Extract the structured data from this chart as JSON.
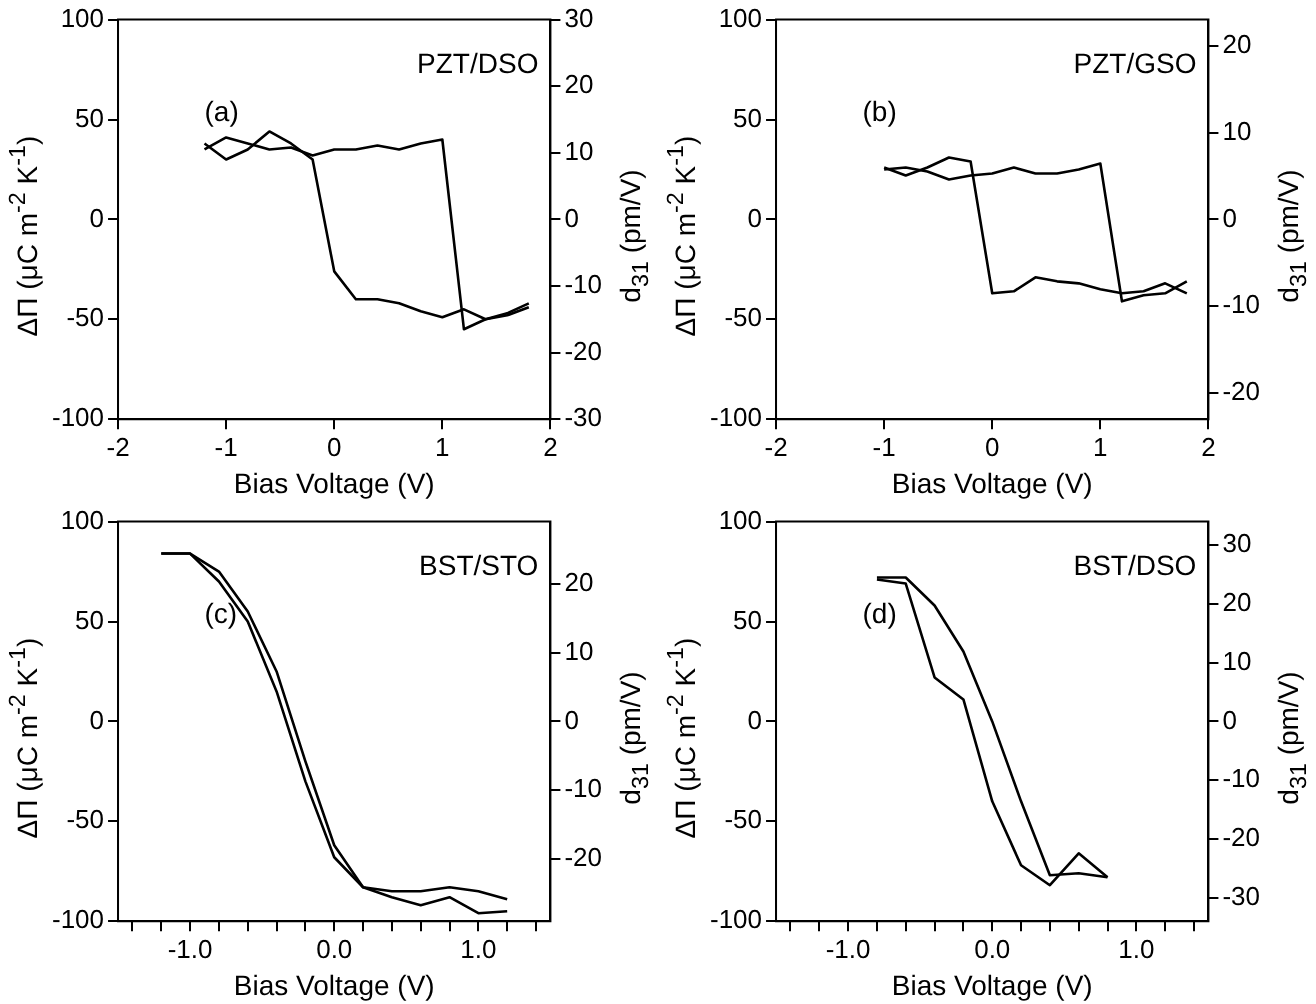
{
  "chart_data": [
    {
      "type": "line",
      "xlabel": "Bias Voltage (V)",
      "ylabel": "ΔΠ (μC m$^{-2}$ K$^{-1}$)",
      "y2label": "d$_{31}$ (pm/V)",
      "annotations": [
        "(a)",
        "PZT/DSO"
      ],
      "xlim": [
        -2,
        2
      ],
      "xticks": [
        -2,
        -1,
        0,
        1,
        2
      ],
      "ylim": [
        -100,
        100
      ],
      "yticks": [
        -100,
        -50,
        0,
        50,
        100
      ],
      "y2lim": [
        -30,
        30
      ],
      "y2ticks": [
        -30,
        -20,
        -10,
        0,
        10,
        20,
        30
      ],
      "series": [
        {
          "color": "#000000",
          "x": [
            -1.2,
            -1.0,
            -0.8,
            -0.6,
            -0.4,
            -0.2,
            0,
            0.2,
            0.4,
            0.6,
            0.8,
            1.0,
            1.2,
            1.4,
            1.6,
            1.8
          ],
          "values": [
            35,
            41,
            38,
            35,
            36,
            32,
            35,
            35,
            37,
            35,
            38,
            40,
            -55,
            -50,
            -48,
            -44
          ]
        },
        {
          "color": "#000000",
          "x": [
            1.8,
            1.6,
            1.4,
            1.2,
            1.0,
            0.8,
            0.6,
            0.4,
            0.2,
            0,
            -0.2,
            -0.4,
            -0.6,
            -0.8,
            -1.0,
            -1.2
          ],
          "values": [
            -42,
            -47,
            -50,
            -45,
            -49,
            -46,
            -42,
            -40,
            -40,
            -26,
            30,
            38,
            44,
            35,
            30,
            38
          ]
        }
      ]
    },
    {
      "type": "line",
      "xlabel": "Bias Voltage (V)",
      "ylabel": "ΔΠ (μC m$^{-2}$ K$^{-1}$)",
      "y2label": "d$_{31}$ (pm/V)",
      "annotations": [
        "(b)",
        "PZT/GSO"
      ],
      "xlim": [
        -2,
        2
      ],
      "xticks": [
        -2,
        -1,
        0,
        1,
        2
      ],
      "ylim": [
        -100,
        100
      ],
      "yticks": [
        -100,
        -50,
        0,
        50,
        100
      ],
      "y2lim": [
        -23,
        23
      ],
      "y2ticks": [
        -20,
        -10,
        0,
        10,
        20
      ],
      "series": [
        {
          "color": "#000000",
          "x": [
            -1.0,
            -0.8,
            -0.6,
            -0.4,
            -0.2,
            0,
            0.2,
            0.4,
            0.6,
            0.8,
            1.0,
            1.2,
            1.4,
            1.6,
            1.8
          ],
          "values": [
            26,
            22,
            26,
            31,
            29,
            -37,
            -36,
            -29,
            -31,
            -32,
            -35,
            -37,
            -36,
            -32,
            -37
          ]
        },
        {
          "color": "#000000",
          "x": [
            1.8,
            1.6,
            1.4,
            1.2,
            1.0,
            0.8,
            0.6,
            0.4,
            0.2,
            0,
            -0.2,
            -0.4,
            -0.6,
            -0.8,
            -1.0
          ],
          "values": [
            -31,
            -37,
            -38,
            -41,
            28,
            25,
            23,
            23,
            26,
            23,
            22,
            20,
            24,
            26,
            25
          ]
        }
      ]
    },
    {
      "type": "line",
      "xlabel": "Bias Voltage (V)",
      "ylabel": "ΔΠ (μC m$^{-2}$ K$^{-1}$)",
      "y2label": "d$_{31}$ (pm/V)",
      "annotations": [
        "(c)",
        "BST/STO"
      ],
      "xlim": [
        -1.5,
        1.5
      ],
      "xticks": [
        {
          "value": -1.4,
          "label": null
        },
        {
          "value": -1.2,
          "label": null
        },
        {
          "value": -1,
          "label": "-1.0"
        },
        {
          "value": -0.8,
          "label": null
        },
        {
          "value": -0.6,
          "label": null
        },
        {
          "value": -0.4,
          "label": null
        },
        {
          "value": -0.2,
          "label": null
        },
        {
          "value": 0,
          "label": "0.0"
        },
        {
          "value": 0.2,
          "label": null
        },
        {
          "value": 0.4,
          "label": null
        },
        {
          "value": 0.6,
          "label": null
        },
        {
          "value": 0.8,
          "label": null
        },
        {
          "value": 1,
          "label": "1.0"
        },
        {
          "value": 1.2,
          "label": null
        },
        {
          "value": 1.4,
          "label": null
        }
      ],
      "ylim": [
        -100,
        100
      ],
      "yticks": [
        -100,
        -50,
        0,
        50,
        100
      ],
      "y2lim": [
        -29,
        29
      ],
      "y2ticks": [
        -20,
        -10,
        0,
        10,
        20
      ],
      "series": [
        {
          "color": "#000000",
          "x": [
            -1.2,
            -1.0,
            -0.8,
            -0.6,
            -0.4,
            -0.2,
            0,
            0.2,
            0.4,
            0.6,
            0.8,
            1.0,
            1.2
          ],
          "values": [
            84,
            84,
            75,
            55,
            25,
            -20,
            -62,
            -83,
            -85,
            -85,
            -83,
            -85,
            -89
          ]
        },
        {
          "color": "#000000",
          "x": [
            1.2,
            1.0,
            0.8,
            0.6,
            0.4,
            0.2,
            0,
            -0.2,
            -0.4,
            -0.6,
            -0.8,
            -1.0,
            -1.2
          ],
          "values": [
            -95,
            -96,
            -88,
            -92,
            -88,
            -83,
            -68,
            -30,
            15,
            50,
            70,
            84,
            84
          ]
        }
      ]
    },
    {
      "type": "line",
      "xlabel": "Bias Voltage (V)",
      "ylabel": "ΔΠ (μC m$^{-2}$ K$^{-1}$)",
      "y2label": "d$_{31}$ (pm/V)",
      "annotations": [
        "(d)",
        "BST/DSO"
      ],
      "xlim": [
        -1.5,
        1.5
      ],
      "xticks": [
        {
          "value": -1.4,
          "label": null
        },
        {
          "value": -1.2,
          "label": null
        },
        {
          "value": -1,
          "label": "-1.0"
        },
        {
          "value": -0.8,
          "label": null
        },
        {
          "value": -0.6,
          "label": null
        },
        {
          "value": -0.4,
          "label": null
        },
        {
          "value": -0.2,
          "label": null
        },
        {
          "value": 0,
          "label": "0.0"
        },
        {
          "value": 0.2,
          "label": null
        },
        {
          "value": 0.4,
          "label": null
        },
        {
          "value": 0.6,
          "label": null
        },
        {
          "value": 0.8,
          "label": null
        },
        {
          "value": 1,
          "label": "1.0"
        },
        {
          "value": 1.2,
          "label": null
        },
        {
          "value": 1.4,
          "label": null
        }
      ],
      "ylim": [
        -100,
        100
      ],
      "yticks": [
        -100,
        -50,
        0,
        50,
        100
      ],
      "y2lim": [
        -34,
        34
      ],
      "y2ticks": [
        -30,
        -20,
        -10,
        0,
        10,
        20,
        30
      ],
      "series": [
        {
          "color": "#000000",
          "x": [
            -0.8,
            -0.6,
            -0.4,
            -0.2,
            0,
            0.2,
            0.4,
            0.6,
            0.8
          ],
          "values": [
            72,
            72,
            58,
            35,
            0,
            -40,
            -77,
            -76,
            -78
          ]
        },
        {
          "color": "#000000",
          "x": [
            0.8,
            0.6,
            0.4,
            0.2,
            0,
            -0.2,
            -0.4,
            -0.6,
            -0.8
          ],
          "values": [
            -78,
            -66,
            -82,
            -72,
            -40,
            11,
            22,
            69,
            71
          ]
        }
      ]
    }
  ]
}
